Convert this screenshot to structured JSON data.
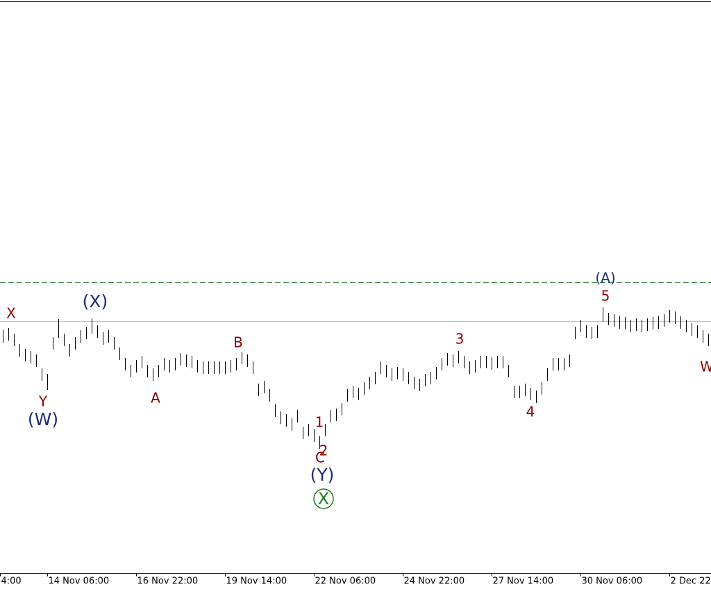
{
  "chart_data": {
    "type": "hl-bars",
    "color": "#000000",
    "xlim": [
      -0.5,
      127.5
    ],
    "ylim": [
      0,
      826
    ],
    "xticks": [
      {
        "value": -0.5,
        "label": "4:00"
      },
      {
        "value": 8,
        "label": "14 Nov 06:00"
      },
      {
        "value": 24,
        "label": "16 Nov 22:00"
      },
      {
        "value": 40,
        "label": "19 Nov 14:00"
      },
      {
        "value": 56,
        "label": "22 Nov 06:00"
      },
      {
        "value": 72,
        "label": "24 Nov 22:00"
      },
      {
        "value": 88,
        "label": "27 Nov 14:00"
      },
      {
        "value": 104,
        "label": "30 Nov 06:00"
      },
      {
        "value": 120,
        "label": "2 Dec 22:"
      }
    ],
    "high": [
      344,
      347,
      339,
      324,
      317,
      314,
      309,
      289,
      281,
      334,
      360,
      339,
      324,
      334,
      344,
      349,
      361,
      351,
      341,
      344,
      334,
      319,
      304,
      294,
      301,
      307,
      294,
      289,
      294,
      304,
      301,
      304,
      311,
      309,
      307,
      301,
      299,
      299,
      299,
      299,
      299,
      301,
      304,
      313,
      309,
      299,
      267,
      271,
      259,
      237,
      227,
      223,
      217,
      229,
      205,
      209,
      201,
      191,
      209,
      229,
      231,
      239,
      259,
      264,
      261,
      269,
      277,
      284,
      299,
      294,
      289,
      291,
      289,
      284,
      277,
      274,
      281,
      284,
      291,
      304,
      311,
      309,
      314,
      307,
      299,
      301,
      307,
      307,
      305,
      307,
      307,
      294,
      264,
      264,
      267,
      261,
      257,
      269,
      289,
      304,
      304,
      304,
      309,
      349,
      359,
      351,
      349,
      351,
      377,
      369,
      367,
      364,
      363,
      359,
      361,
      359,
      361,
      363,
      364,
      367,
      373,
      371,
      364,
      359,
      354,
      351,
      344,
      339
    ],
    "low": [
      326,
      329,
      321,
      306,
      299,
      296,
      291,
      271,
      258,
      316,
      333,
      321,
      306,
      316,
      326,
      331,
      339,
      333,
      323,
      326,
      316,
      301,
      286,
      276,
      283,
      289,
      276,
      271,
      276,
      286,
      283,
      286,
      293,
      291,
      289,
      283,
      281,
      281,
      281,
      281,
      281,
      283,
      286,
      295,
      291,
      281,
      249,
      253,
      241,
      219,
      209,
      205,
      199,
      211,
      187,
      191,
      183,
      173,
      191,
      211,
      213,
      221,
      241,
      246,
      243,
      251,
      259,
      266,
      281,
      276,
      271,
      273,
      271,
      266,
      259,
      256,
      263,
      266,
      273,
      286,
      293,
      291,
      296,
      289,
      281,
      283,
      289,
      289,
      287,
      289,
      289,
      276,
      246,
      246,
      249,
      243,
      239,
      251,
      271,
      286,
      286,
      286,
      291,
      331,
      341,
      333,
      331,
      333,
      356,
      351,
      349,
      346,
      345,
      341,
      343,
      341,
      343,
      345,
      346,
      349,
      355,
      353,
      346,
      341,
      336,
      333,
      326,
      321
    ],
    "levels": [
      {
        "value": 357,
        "color": "#c0c0c0",
        "style": "solid"
      },
      {
        "value": 413,
        "color": "#2e7d32",
        "style": "dashed"
      }
    ],
    "annotations": [
      "X",
      "(X)",
      "Y",
      "(W)",
      "A",
      "B",
      "1",
      "2",
      "C",
      "(Y)",
      "X",
      "3",
      "4",
      "5",
      "(A)",
      "W"
    ]
  }
}
